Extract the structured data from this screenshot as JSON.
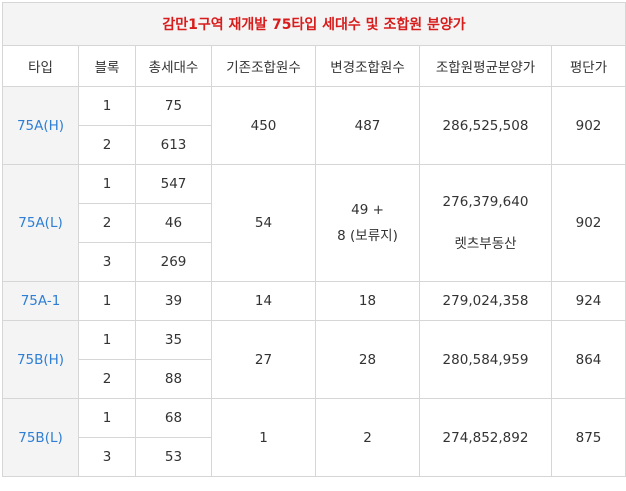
{
  "title": "감만1구역 재개발 75타입 세대수 및 조합원 분양가",
  "headers": [
    "타입",
    "블록",
    "총세대수",
    "기존조합원수",
    "변경조합원수",
    "조합원평균분양가",
    "평단가"
  ],
  "groups": [
    {
      "type": "75A(H)",
      "rows": [
        {
          "block": "1",
          "households": "75"
        },
        {
          "block": "2",
          "households": "613"
        }
      ],
      "existing": "450",
      "changed": "487",
      "avg_price": "286,525,508",
      "price_per_pyeong": "902"
    },
    {
      "type": "75A(L)",
      "rows": [
        {
          "block": "1",
          "households": "547"
        },
        {
          "block": "2",
          "households": "46"
        },
        {
          "block": "3",
          "households": "269"
        }
      ],
      "existing": "54",
      "changed_line1": "49 +",
      "changed_line2": "8 (보류지)",
      "avg_price": "276,379,640",
      "watermark": "렛츠부동산",
      "price_per_pyeong": "902"
    },
    {
      "type": "75A-1",
      "rows": [
        {
          "block": "1",
          "households": "39"
        }
      ],
      "existing": "14",
      "changed": "18",
      "avg_price": "279,024,358",
      "price_per_pyeong": "924"
    },
    {
      "type": "75B(H)",
      "rows": [
        {
          "block": "1",
          "households": "35"
        },
        {
          "block": "2",
          "households": "88"
        }
      ],
      "existing": "27",
      "changed": "28",
      "avg_price": "280,584,959",
      "price_per_pyeong": "864"
    },
    {
      "type": "75B(L)",
      "rows": [
        {
          "block": "1",
          "households": "68"
        },
        {
          "block": "3",
          "households": "53"
        }
      ],
      "existing": "1",
      "changed": "2",
      "avg_price": "274,852,892",
      "price_per_pyeong": "875"
    }
  ]
}
